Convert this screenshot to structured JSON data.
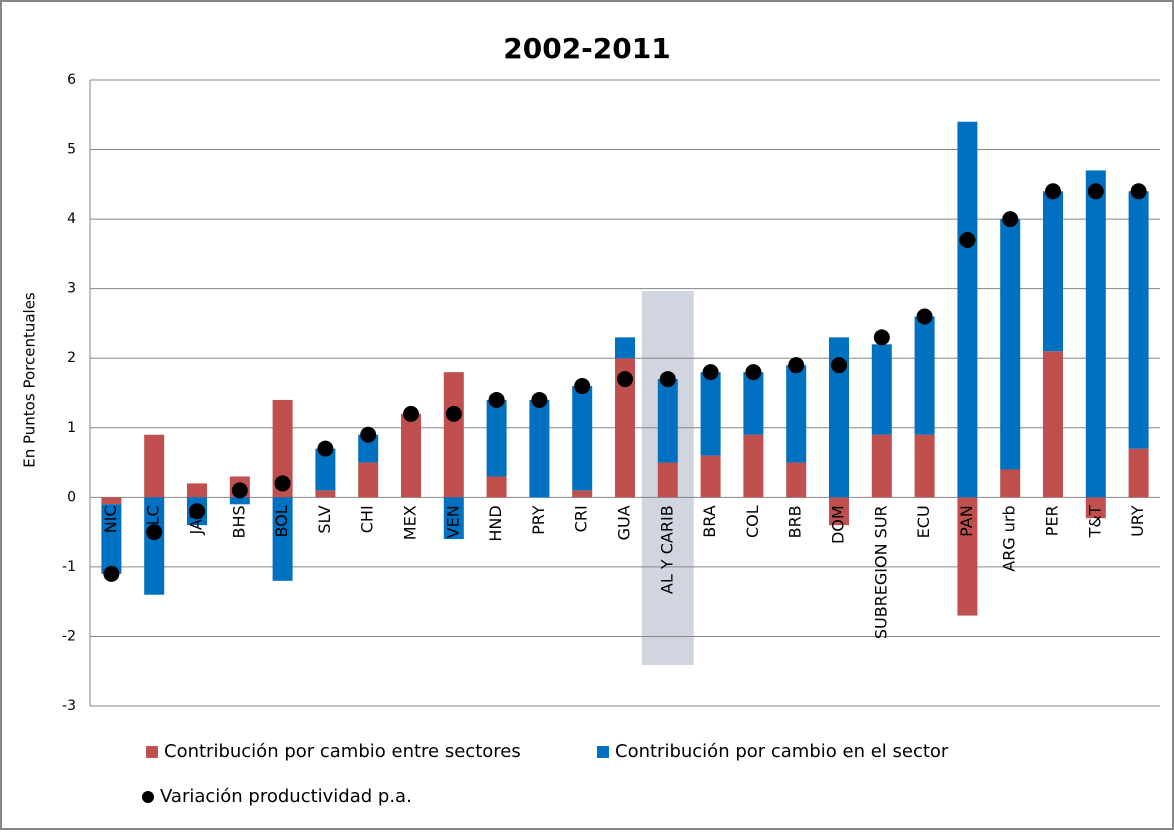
{
  "chart_data": {
    "type": "bar",
    "stacked": true,
    "title": "2002-2011",
    "y_label": "En Puntos Porcentuales",
    "categories": [
      "NIC",
      "SLC",
      "JAM",
      "BHS",
      "BOL",
      "SLV",
      "CHI",
      "MEX",
      "VEN",
      "HND",
      "PRY",
      "CRI",
      "GUA",
      "AL Y CARIB",
      "BRA",
      "COL",
      "BRB",
      "DOM",
      "SUBREGION SUR",
      "ECU",
      "PAN",
      "ARG urb",
      "PER",
      "T&T",
      "URY"
    ],
    "series": [
      {
        "name": "Contribución por cambio entre sectores",
        "color": "#c0504d",
        "kind": "bar",
        "values": [
          -0.1,
          0.9,
          0.2,
          0.3,
          1.4,
          0.1,
          0.5,
          1.2,
          1.8,
          0.3,
          0,
          0.1,
          2.0,
          0.5,
          0.6,
          0.9,
          0.5,
          -0.4,
          0.9,
          0.9,
          -1.7,
          0.4,
          2.1,
          -0.3,
          0.7
        ]
      },
      {
        "name": "Contribución por cambio en el sector",
        "color": "#0070c0",
        "kind": "bar",
        "values": [
          -1.0,
          -1.4,
          -0.4,
          -0.1,
          -1.2,
          0.6,
          0.4,
          0,
          -0.6,
          1.1,
          1.4,
          1.5,
          0.3,
          1.2,
          1.2,
          0.9,
          1.4,
          2.3,
          1.3,
          1.7,
          5.4,
          3.6,
          2.3,
          4.7,
          3.7
        ]
      },
      {
        "name": "Variación productividad p.a.",
        "color": "#000000",
        "kind": "dot",
        "values": [
          -1.1,
          -0.5,
          -0.2,
          0.1,
          0.2,
          0.7,
          0.9,
          1.2,
          1.2,
          1.4,
          1.4,
          1.6,
          1.7,
          1.7,
          1.8,
          1.8,
          1.9,
          1.9,
          2.3,
          2.6,
          3.7,
          4.0,
          4.4,
          4.4,
          4.4
        ]
      }
    ],
    "ylim": [
      -3,
      6
    ],
    "yticks": [
      -3,
      -2,
      -1,
      0,
      1,
      2,
      3,
      4,
      5,
      6
    ],
    "grid": true
  }
}
